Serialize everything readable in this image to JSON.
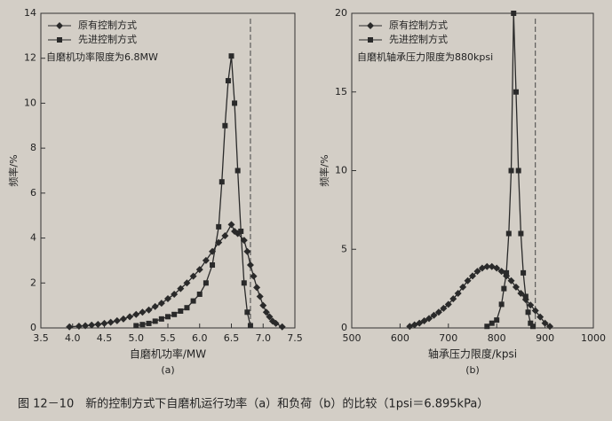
{
  "caption": "图 12－10　新的控制方式下自磨机运行功率（a）和负荷（b）的比较（1psi＝6.895kPa）",
  "chart_data": [
    {
      "type": "line",
      "subtitle": "(a)",
      "x_label": "自磨机功率/MW",
      "y_label": "频率/%",
      "annotation": "自磨机功率限度为6.8MW",
      "vline": 6.8,
      "legend": "top-left",
      "xlim": [
        3.5,
        7.5
      ],
      "xticks": [
        3.5,
        {
          "value": 4,
          "label": "4.0"
        },
        4.5,
        {
          "value": 5,
          "label": "5.0"
        },
        5.5,
        {
          "value": 6,
          "label": "6.0"
        },
        6.5,
        {
          "value": 7,
          "label": "7.0"
        },
        7.5
      ],
      "ylim": [
        0,
        14
      ],
      "yticks": [
        0,
        2,
        4,
        6,
        8,
        10,
        12,
        14
      ],
      "series": [
        {
          "name": "原有控制方式",
          "color": "#2a2a2a",
          "marker": "diamond",
          "x": [
            3.95,
            4.1,
            4.2,
            4.3,
            4.4,
            4.5,
            4.6,
            4.7,
            4.8,
            4.9,
            5.0,
            5.1,
            5.2,
            5.3,
            5.4,
            5.5,
            5.6,
            5.7,
            5.8,
            5.9,
            6.0,
            6.1,
            6.2,
            6.3,
            6.4,
            6.5,
            6.55,
            6.6,
            6.7,
            6.75,
            6.8,
            6.85,
            6.9,
            6.95,
            7.0,
            7.05,
            7.1,
            7.15,
            7.2,
            7.3
          ],
          "values": [
            0.05,
            0.08,
            0.1,
            0.13,
            0.16,
            0.2,
            0.25,
            0.32,
            0.4,
            0.5,
            0.6,
            0.7,
            0.8,
            0.95,
            1.1,
            1.3,
            1.5,
            1.75,
            2.0,
            2.3,
            2.6,
            3.0,
            3.4,
            3.8,
            4.1,
            4.6,
            4.3,
            4.2,
            3.9,
            3.4,
            2.8,
            2.3,
            1.8,
            1.4,
            1.0,
            0.7,
            0.5,
            0.3,
            0.2,
            0.05
          ]
        },
        {
          "name": "先进控制方式",
          "color": "#2a2a2a",
          "marker": "square",
          "x": [
            5.0,
            5.1,
            5.2,
            5.3,
            5.4,
            5.5,
            5.6,
            5.7,
            5.8,
            5.9,
            6.0,
            6.1,
            6.2,
            6.3,
            6.35,
            6.4,
            6.45,
            6.5,
            6.55,
            6.6,
            6.65,
            6.7,
            6.75,
            6.8
          ],
          "values": [
            0.1,
            0.15,
            0.2,
            0.3,
            0.4,
            0.5,
            0.6,
            0.75,
            0.9,
            1.2,
            1.5,
            2.0,
            2.8,
            4.5,
            6.5,
            9.0,
            11.0,
            12.1,
            10.0,
            7.0,
            4.3,
            2.0,
            0.7,
            0.1
          ]
        }
      ]
    },
    {
      "type": "line",
      "subtitle": "(b)",
      "x_label": "轴承压力限度/kpsi",
      "y_label": "频率/%",
      "annotation": "自磨机轴承压力限度为880kpsi",
      "vline": 880,
      "legend": "top-left",
      "xlim": [
        500,
        1000
      ],
      "xticks": [
        500,
        600,
        700,
        800,
        900,
        1000
      ],
      "ylim": [
        0,
        20
      ],
      "yticks": [
        0,
        5,
        10,
        15,
        20
      ],
      "series": [
        {
          "name": "原有控制方式",
          "color": "#2a2a2a",
          "marker": "diamond",
          "x": [
            620,
            630,
            640,
            650,
            660,
            670,
            680,
            690,
            700,
            710,
            720,
            730,
            740,
            750,
            760,
            770,
            780,
            790,
            800,
            810,
            820,
            830,
            840,
            850,
            860,
            870,
            880,
            890,
            900,
            910
          ],
          "values": [
            0.1,
            0.2,
            0.3,
            0.45,
            0.6,
            0.8,
            1.0,
            1.25,
            1.5,
            1.85,
            2.2,
            2.6,
            3.0,
            3.3,
            3.6,
            3.8,
            3.9,
            3.9,
            3.8,
            3.6,
            3.3,
            3.0,
            2.6,
            2.2,
            1.8,
            1.45,
            1.1,
            0.7,
            0.3,
            0.1
          ]
        },
        {
          "name": "先进控制方式",
          "color": "#2a2a2a",
          "marker": "square",
          "x": [
            780,
            790,
            800,
            810,
            815,
            820,
            825,
            830,
            835,
            840,
            845,
            850,
            855,
            860,
            865,
            870,
            875
          ],
          "values": [
            0.1,
            0.3,
            0.5,
            1.5,
            2.5,
            3.5,
            6.0,
            10.0,
            20.0,
            15.0,
            10.0,
            6.0,
            3.5,
            2.0,
            1.0,
            0.3,
            0.1
          ]
        }
      ]
    }
  ]
}
